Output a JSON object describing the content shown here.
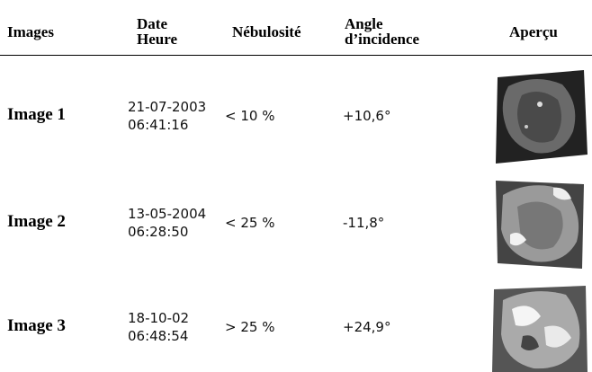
{
  "table": {
    "header": [
      "Images",
      [
        "Date",
        "Heure"
      ],
      "Nébulosité",
      [
        "Angle",
        "d’incidence"
      ],
      "Aperçu"
    ],
    "rows": [
      [
        "Image 1",
        [
          "21-07-2003",
          "06:41:16"
        ],
        "< 10 %",
        "+10,6°"
      ],
      [
        "Image 2",
        [
          "13-05-2004",
          "06:28:50"
        ],
        "< 25 %",
        "-11,8°"
      ],
      [
        "Image 3",
        [
          "18-10-02",
          "06:48:54"
        ],
        "> 25 %",
        "+24,9°"
      ]
    ]
  }
}
